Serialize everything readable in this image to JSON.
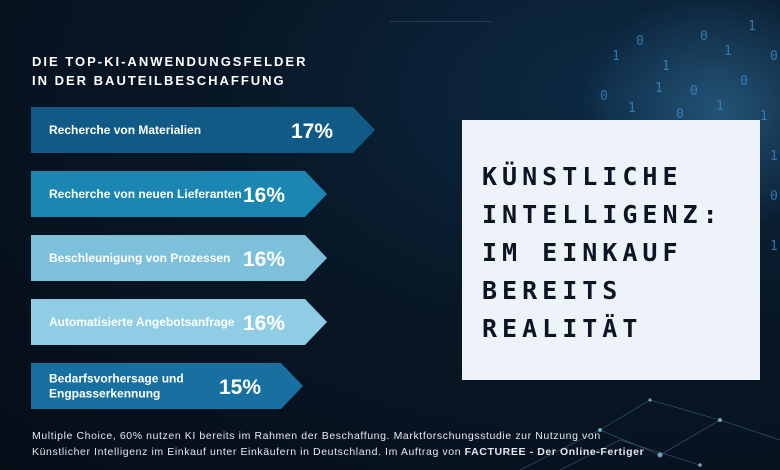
{
  "heading": {
    "line1": "DIE TOP-KI-ANWENDUNGSFELDER",
    "line2": "IN DER BAUTEILBESCHAFFUNG"
  },
  "chart_data": {
    "type": "bar",
    "orientation": "horizontal",
    "categories": [
      [
        "Recherche von Materialien"
      ],
      [
        "Recherche von neuen Lieferanten"
      ],
      [
        "Beschleunigung von Prozessen"
      ],
      [
        "Automatisierte Angebotsanfrage"
      ],
      [
        "Bedarfsvorhersage und",
        "Engpasserkennung"
      ]
    ],
    "values": [
      17,
      16,
      16,
      16,
      15
    ],
    "value_labels": [
      "17%",
      "16%",
      "16%",
      "16%",
      "15%"
    ],
    "unit": "%",
    "colors": [
      "#125a86",
      "#1b86b2",
      "#7dc0da",
      "#8ecde3",
      "#1870a0"
    ]
  },
  "panel": {
    "lines": [
      "KÜNSTLICHE",
      "INTELLIGENZ:",
      "IM EINKAUF",
      "BEREITS",
      "REALITÄT"
    ]
  },
  "footnote": {
    "line1": "Multiple Choice, 60% nutzen KI bereits im Rahmen der Beschaffung. Marktforschungsstudie zur Nutzung von",
    "line2_plain": "Künstlicher Intelligenz im Einkauf unter Einkäufern in Deutschland. Im Auftrag von ",
    "line2_bold": "FACTUREE - Der Online-Fertiger"
  }
}
